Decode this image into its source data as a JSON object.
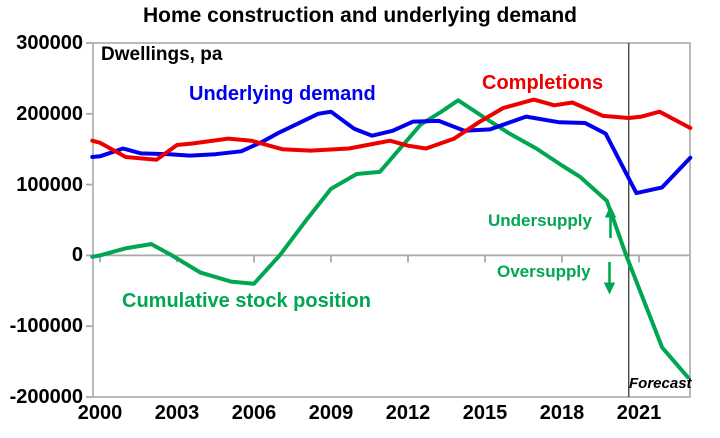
{
  "chart": {
    "title": "Home construction and underlying demand",
    "unit_label": "Dwellings, pa",
    "series_labels": {
      "demand": "Underlying demand",
      "completions": "Completions",
      "stock": "Cumulative stock position"
    },
    "annotations": {
      "undersupply": "Undersupply",
      "oversupply": "Oversupply",
      "forecast": "Forecast"
    },
    "icons": {
      "undersupply_arrow": "up-arrow",
      "oversupply_arrow": "down-arrow"
    }
  },
  "colors": {
    "demand": "#0000ee",
    "completions": "#ee0000",
    "stock": "#00a651",
    "axis": "#a8a8a8",
    "forecast_line": "#3a3a3a",
    "text": "#000000"
  },
  "chart_data": {
    "type": "line",
    "title": "Home construction and underlying demand",
    "xlabel": "",
    "ylabel": "Dwellings, pa",
    "xlim": [
      1999.7,
      2023.25
    ],
    "ylim": [
      -200000,
      300000
    ],
    "grid": false,
    "legend_position": "inline-labels",
    "x_ticks": [
      2000,
      2003,
      2006,
      2009,
      2012,
      2015,
      2018,
      2021
    ],
    "y_ticks": [
      300000,
      200000,
      100000,
      0,
      -100000,
      -200000
    ],
    "forecast_line_x": 2020.6,
    "series": [
      {
        "name": "Cumulative stock position",
        "color_key": "stock",
        "points": [
          [
            1999.7,
            -2000
          ],
          [
            2000,
            0
          ],
          [
            2001,
            10000
          ],
          [
            2002,
            16000
          ],
          [
            2002.8,
            0
          ],
          [
            2003.9,
            -24000
          ],
          [
            2005.1,
            -37000
          ],
          [
            2006,
            -40000
          ],
          [
            2007,
            0
          ],
          [
            2008,
            48000
          ],
          [
            2009,
            94000
          ],
          [
            2010,
            115000
          ],
          [
            2010.9,
            118000
          ],
          [
            2012.5,
            185000
          ],
          [
            2013.3,
            203000
          ],
          [
            2013.95,
            219000
          ],
          [
            2015,
            194000
          ],
          [
            2016,
            171000
          ],
          [
            2017,
            151000
          ],
          [
            2018,
            127000
          ],
          [
            2018.7,
            111000
          ],
          [
            2019.75,
            77000
          ],
          [
            2020.5,
            0
          ],
          [
            2021.9,
            -130000
          ],
          [
            2022.9,
            -172000
          ]
        ]
      },
      {
        "name": "Underlying demand",
        "color_key": "demand",
        "points": [
          [
            1999.7,
            139000
          ],
          [
            2000,
            140000
          ],
          [
            2000.9,
            151000
          ],
          [
            2001.6,
            144000
          ],
          [
            2002.7,
            143000
          ],
          [
            2003.5,
            141000
          ],
          [
            2004.5,
            143000
          ],
          [
            2005.5,
            147000
          ],
          [
            2006.3,
            160000
          ],
          [
            2006.9,
            172000
          ],
          [
            2008.5,
            200000
          ],
          [
            2009,
            203000
          ],
          [
            2009.9,
            179000
          ],
          [
            2010.6,
            169000
          ],
          [
            2011.4,
            176000
          ],
          [
            2012.2,
            189000
          ],
          [
            2013.2,
            190000
          ],
          [
            2014.2,
            176000
          ],
          [
            2015.2,
            178000
          ],
          [
            2016.6,
            196000
          ],
          [
            2017.9,
            188000
          ],
          [
            2018.9,
            187000
          ],
          [
            2019.7,
            172000
          ],
          [
            2020.9,
            88000
          ],
          [
            2021.9,
            96000
          ],
          [
            2023,
            138000
          ]
        ]
      },
      {
        "name": "Completions",
        "color_key": "completions",
        "points": [
          [
            1999.7,
            162000
          ],
          [
            2000,
            159000
          ],
          [
            2001,
            139000
          ],
          [
            2002.2,
            135000
          ],
          [
            2003,
            156000
          ],
          [
            2003.6,
            158000
          ],
          [
            2005,
            165000
          ],
          [
            2005.9,
            162000
          ],
          [
            2007.1,
            150000
          ],
          [
            2008.2,
            148000
          ],
          [
            2009.7,
            151000
          ],
          [
            2011.3,
            162000
          ],
          [
            2012,
            155000
          ],
          [
            2012.7,
            151000
          ],
          [
            2013.8,
            165000
          ],
          [
            2014.8,
            189000
          ],
          [
            2015.7,
            208000
          ],
          [
            2016.9,
            220000
          ],
          [
            2017.7,
            212000
          ],
          [
            2018.4,
            216000
          ],
          [
            2019.6,
            197000
          ],
          [
            2020.6,
            194000
          ],
          [
            2021.1,
            196000
          ],
          [
            2021.8,
            203000
          ],
          [
            2023,
            180000
          ]
        ]
      }
    ]
  }
}
